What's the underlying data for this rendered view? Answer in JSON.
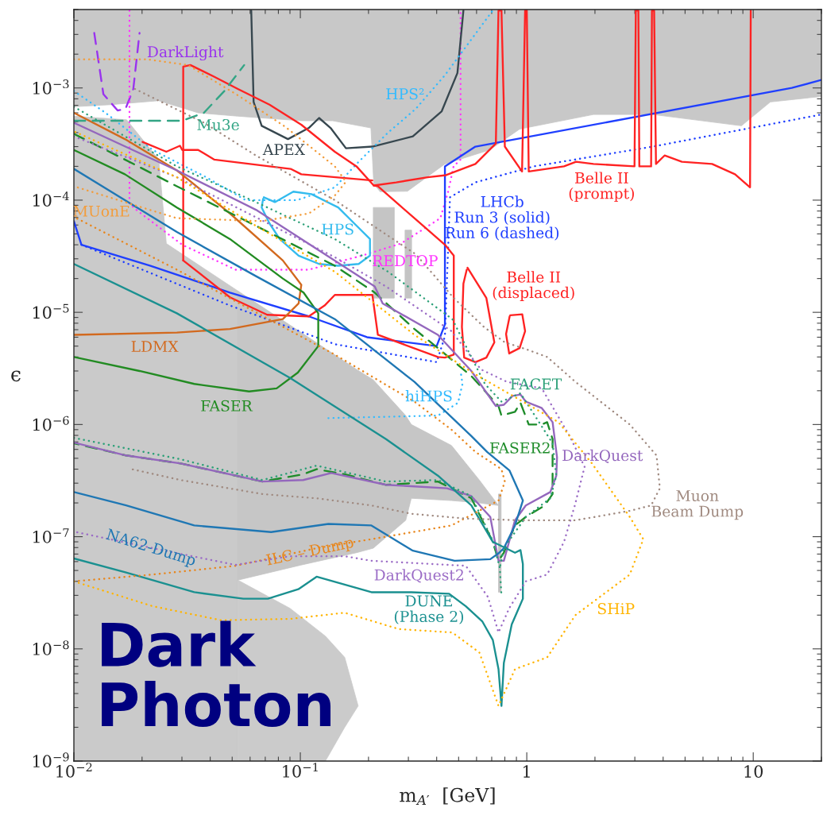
{
  "chart_data": {
    "type": "line",
    "xlabel": "m$_{A′}$  [GeV]",
    "ylabel": "ϵ",
    "log": "xy",
    "xlim": [
      0.01,
      20
    ],
    "ylim": [
      1e-09,
      0.005
    ],
    "xticks": [
      {
        "value": 0.01,
        "label": "10$^{−2}$"
      },
      {
        "value": 0.1,
        "label": "10$^{−1}$"
      },
      1,
      10
    ],
    "yticks": [
      {
        "value": 1e-09,
        "label": "10$^{−9}$"
      },
      {
        "value": 1e-08,
        "label": "10$^{−8}$"
      },
      {
        "value": 1e-07,
        "label": "10$^{−7}$"
      },
      {
        "value": 1e-06,
        "label": "10$^{−6}$"
      },
      {
        "value": 1e-05,
        "label": "10$^{−5}$"
      },
      {
        "value": 0.0001,
        "label": "10$^{−4}$"
      },
      {
        "value": 0.001,
        "label": "10$^{−3}$"
      }
    ],
    "series": [
      {
        "type": "line",
        "color": "#c8c8c8",
        "x": [
          0.01,
          0.0146,
          0.0237,
          0.0354,
          0.053,
          0.101,
          0.139,
          0.205,
          0.211,
          0.225,
          0.297,
          0.435,
          0.685,
          0.93,
          1.97,
          3.6,
          8.87,
          11.9,
          20
        ],
        "lower": [
          0.00068,
          0.00071,
          0.00077,
          0.0006,
          0.00056,
          0.00051,
          0.00051,
          0.00044,
          0.00014,
          0.000119,
          0.00012,
          0.00021,
          0.00028,
          0.00043,
          0.00058,
          0.00058,
          0.00046,
          0.00075,
          0.00084
        ],
        "values": [
          null,
          null,
          null,
          null,
          null,
          null,
          null,
          null,
          null,
          null,
          null,
          null,
          null,
          null,
          null,
          null,
          null,
          null,
          null
        ],
        "upper": [
          0.005,
          0.005,
          0.005,
          0.005,
          0.005,
          0.005,
          0.005,
          0.005,
          0.005,
          0.005,
          0.005,
          0.005,
          0.005,
          0.005,
          0.005,
          0.005,
          0.005,
          0.005,
          0.005
        ]
      },
      {
        "type": "line",
        "color": "#cacaca",
        "x": [
          0.01,
          0.0171,
          0.0237,
          0.0256,
          0.053
        ],
        "lower": [
          1e-09,
          1e-09,
          1e-09,
          1e-09,
          1e-09
        ],
        "values": [
          null,
          null,
          null,
          null,
          null
        ],
        "upper": [
          0.00056,
          0.00052,
          0.00023,
          4.1e-05,
          1.55e-05
        ]
      },
      {
        "type": "line",
        "color": "#c6c6c6",
        "x": [
          0.053,
          0.101,
          0.177,
          0.21,
          0.292,
          0.309,
          0.465,
          0.617,
          0.75
        ],
        "lower": [
          4.1e-08,
          5.6e-08,
          7.2e-08,
          7.9e-08,
          1.4e-07,
          2.2e-07,
          2.1e-07,
          2e-07,
          1.9e-07
        ],
        "values": [
          null,
          null,
          null,
          null,
          null,
          null,
          null,
          null,
          null
        ],
        "upper": [
          1.55e-05,
          6.6e-06,
          3.1e-06,
          2.5e-06,
          1.2e-06,
          1e-06,
          6.5e-07,
          3.2e-07,
          1.9e-07
        ]
      },
      {
        "type": "line",
        "color": "#cbcbcb",
        "x": [
          0.053,
          0.09,
          0.129,
          0.157,
          0.18
        ],
        "lower": [
          1e-09,
          1e-09,
          1e-09,
          2e-09,
          3.1e-09
        ],
        "values": [
          null,
          null,
          null,
          null,
          null
        ],
        "upper": [
          4.1e-08,
          2.3e-08,
          1.3e-08,
          8.4e-09,
          3.1e-09
        ]
      },
      {
        "type": "line",
        "color": "#c5c5c5",
        "x": [
          0.21,
          0.26
        ],
        "lower": [
          1.34e-05,
          1.34e-05
        ],
        "values": [
          null,
          null
        ],
        "upper": [
          8.6e-05,
          8.6e-05
        ]
      },
      {
        "type": "line",
        "color": "#c4c4c4",
        "x": [
          0.29,
          0.31
        ],
        "lower": [
          1.34e-05,
          1.34e-05
        ],
        "values": [
          null,
          null
        ],
        "upper": [
          5.4e-05,
          5.4e-05
        ]
      },
      {
        "type": "line",
        "color": "#c3c3c3",
        "x": [
          0.75,
          0.77
        ],
        "lower": [
          3.2e-08,
          3.2e-08
        ],
        "values": [
          null,
          null
        ],
        "upper": [
          2.4e-07,
          2.4e-07
        ]
      },
      {
        "name": "DarkLight",
        "color": "#9933ee",
        "line_style": "dashed",
        "x": [
          0.0123,
          0.0135,
          0.0156,
          0.0169,
          0.0183,
          0.0195
        ],
        "values": [
          0.0031,
          0.00088,
          0.00063,
          0.00065,
          0.00098,
          0.0031
        ]
      },
      {
        "name": "REDTOP",
        "color": "#ff33ff",
        "line_style": "dotted",
        "x": [
          0.0176,
          0.0176,
          0.019,
          0.0301,
          0.0517,
          0.109,
          0.187,
          0.278,
          0.415,
          0.45,
          0.475,
          0.51,
          0.51
        ],
        "values": [
          0.0049,
          9.3e-05,
          8.1e-05,
          4e-05,
          2.4e-05,
          2.4e-05,
          3.2e-05,
          4.1e-05,
          6.9e-05,
          0.00012,
          0.0002,
          0.00023,
          0.0049
        ]
      },
      {
        "name": "APEX",
        "color": "#37474f",
        "line_style": "solid",
        "x": [
          0.0607,
          0.0622,
          0.0675,
          0.0882,
          0.109,
          0.121,
          0.136,
          0.159,
          0.208,
          0.314,
          0.421,
          0.494,
          0.525
        ],
        "values": [
          0.0049,
          0.00075,
          0.00046,
          0.00035,
          0.00044,
          0.00054,
          0.00044,
          0.00029,
          0.0003,
          0.00037,
          0.00062,
          0.00136,
          0.0049
        ]
      },
      {
        "name": "HPS²",
        "color": "#33bbff",
        "line_style": "dotted",
        "x": [
          0.01,
          0.0138,
          0.0223,
          0.0384,
          0.0574,
          0.0967,
          0.142,
          0.177,
          0.244,
          0.323,
          0.435,
          0.707
        ],
        "values": [
          0.00094,
          0.0006,
          0.00028,
          0.00016,
          0.0001,
          0.0001,
          0.00013,
          0.00021,
          0.0004,
          0.00065,
          0.0013,
          0.0049
        ]
      },
      {
        "type": "line",
        "name": "HPS",
        "color": "#33bbee",
        "line_style": "solid",
        "x": [
          0.069,
          0.0772,
          0.0931,
          0.112,
          0.147,
          0.173,
          0.203,
          0.203,
          0.181,
          0.147,
          0.121,
          0.0983,
          0.0811,
          0.0731,
          0.0675,
          0.0685
        ],
        "values": [
          0.000106,
          9.6e-05,
          0.000119,
          0.000113,
          8.6e-05,
          6.2e-05,
          4.5e-05,
          3.2e-05,
          2.7e-05,
          2.6e-05,
          2.7e-05,
          3.2e-05,
          4.5e-05,
          6.2e-05,
          8.6e-05,
          0.000103
        ]
      },
      {
        "name": "hiHPS",
        "color": "#33bbff",
        "line_style": "dotted",
        "x": [
          0.133,
          0.405,
          0.497,
          0.52,
          0.51
        ],
        "values": [
          1.14e-06,
          1.2e-06,
          1.56e-06,
          2.3e-06,
          3e-06
        ]
      },
      {
        "name": "LHCb\nRun 3 (solid)\nRun 6 (dashed)",
        "color": "#1f3fff",
        "line_style": "solid",
        "x": [
          0.01,
          0.0108,
          0.0218,
          0.0489,
          0.109,
          0.197,
          0.4,
          0.435,
          0.435,
          0.593,
          14.8,
          20
        ],
        "values": [
          6.5e-05,
          4e-05,
          2.6e-05,
          1.5e-05,
          9.2e-06,
          6e-06,
          5e-06,
          7.8e-06,
          0.0002,
          0.0003,
          0.001,
          0.00118
        ]
      },
      {
        "color": "#1f3fff",
        "line_style": "dotted",
        "x": [
          0.0108,
          0.0489,
          0.142,
          0.4,
          0.435,
          0.458,
          0.593,
          1.075,
          3.6,
          20
        ],
        "values": [
          4e-05,
          1.15e-05,
          5.2e-06,
          3.6e-06,
          6.1e-06,
          0.000106,
          0.000144,
          0.0002,
          0.0003,
          0.00058
        ]
      },
      {
        "name": "Belle II\n(prompt)",
        "color": "#ff2222",
        "line_style": "solid",
        "x": [
          0.0304,
          0.0304,
          0.0327,
          0.0416,
          0.053,
          0.0731,
          0.101,
          0.142,
          0.177,
          0.211,
          0.265,
          0.365,
          0.44,
          0.593,
          0.73,
          0.75,
          0.773,
          0.8,
          0.953,
          0.983,
          1.0,
          1.02,
          1.46,
          1.65,
          1.97,
          2.99,
          3.03,
          3.11,
          3.14,
          3.54,
          3.57,
          3.65,
          3.72,
          4.06,
          4.84,
          6.58,
          8.31,
          9.68,
          9.75
        ],
        "values": [
          2.9e-05,
          0.00155,
          0.0016,
          0.00126,
          0.00098,
          0.00071,
          0.00047,
          0.00027,
          0.0002,
          0.000135,
          0.000144,
          0.00016,
          0.000167,
          0.00021,
          0.00032,
          0.0049,
          0.0049,
          0.0003,
          0.00018,
          0.0049,
          0.0049,
          0.00018,
          0.0002,
          0.00022,
          0.00021,
          0.0002,
          0.0049,
          0.0049,
          0.0002,
          0.0002,
          0.0049,
          0.0049,
          0.00021,
          0.00025,
          0.00022,
          0.00021,
          0.00017,
          0.00013,
          0.0049
        ]
      },
      {
        "color": "#ff2222",
        "line_style": "solid",
        "x": [
          0.0304,
          0.0489,
          0.0714,
          0.109,
          0.128,
          0.142,
          0.208,
          0.22,
          0.405,
          0.435,
          0.476,
          0.476,
          0.435,
          0.319,
          0.22,
          0.211
        ],
        "values": [
          2.9e-05,
          1.36e-05,
          9.5e-06,
          9.2e-06,
          1.15e-05,
          1.43e-05,
          1.43e-05,
          6.3e-06,
          4e-06,
          3.95e-06,
          4.2e-06,
          3.2e-05,
          4e-05,
          6.9e-05,
          0.000133,
          0.000135
        ]
      },
      {
        "color": "#ff2222",
        "line_style": "solid",
        "x": [
          0.0201,
          0.0256,
          0.0294,
          0.0301,
          0.0354,
          0.0416,
          0.0906,
          0.101,
          0.208
        ],
        "values": [
          0.00033,
          0.00027,
          0.000305,
          0.00028,
          0.00028,
          0.00023,
          0.00019,
          0.00017,
          0.00015
        ]
      },
      {
        "type": "line",
        "name": "Belle II\n(displaced)",
        "color": "#ff2222",
        "line_style": "solid",
        "x": [
          0.547,
          0.663,
          0.719,
          0.663,
          0.593,
          0.529,
          0.517,
          0.525,
          0.543
        ],
        "values": [
          2.5e-05,
          1.34e-05,
          5.4e-06,
          3.95e-06,
          3.6e-06,
          3.95e-06,
          7.4e-06,
          1.8e-05,
          2.4e-05
        ]
      },
      {
        "type": "line",
        "color": "#ff2222",
        "line_style": "solid",
        "x": [
          0.845,
          0.955,
          0.983,
          0.93,
          0.836,
          0.81,
          0.84
        ],
        "values": [
          9.4e-06,
          9.6e-06,
          6.8e-06,
          4.8e-06,
          4.3e-06,
          6.4e-06,
          9.2e-06
        ]
      },
      {
        "name": "LDMX",
        "color": "#d2691e",
        "line_style": "solid",
        "x": [
          0.01,
          0.0168,
          0.0285,
          0.0489,
          0.0837,
          0.101,
          0.0983,
          0.0837,
          0.0489,
          0.0285,
          0.01
        ],
        "values": [
          0.0006,
          0.00035,
          0.000184,
          7.6e-05,
          2.9e-05,
          1.76e-05,
          1.2e-05,
          8.7e-06,
          7.1e-06,
          6.6e-06,
          6.3e-06
        ]
      },
      {
        "name": "FASER",
        "color": "#228b22",
        "line_style": "solid",
        "x": [
          0.01,
          0.0168,
          0.0285,
          0.0489,
          0.0837,
          0.1033,
          0.12,
          0.12,
          0.0975,
          0.0786,
          0.0594,
          0.034,
          0.0195,
          0.01
        ],
        "values": [
          0.00028,
          0.00017,
          8.6e-05,
          4.5e-05,
          2e-05,
          1.5e-05,
          9.8e-06,
          5e-06,
          2.9e-06,
          2.1e-06,
          1.97e-06,
          2.3e-06,
          3e-06,
          4e-06
        ]
      },
      {
        "name": "FASER2",
        "color": "#1e8c2a",
        "line_style": "dashed",
        "x": [
          0.01,
          0.0168,
          0.0285,
          0.0637,
          0.142,
          0.213,
          0.319,
          0.405,
          0.569,
          0.75,
          0.773,
          0.887,
          0.938,
          1.02,
          1.165,
          1.23,
          1.3,
          1.3,
          1.2,
          0.99,
          0.887,
          0.792,
          0.75,
          0.708,
          0.653,
          0.569,
          0.405,
          0.239,
          0.157,
          0.118,
          0.103,
          0.068,
          0.0296,
          0.017,
          0.01
        ],
        "values": [
          0.00039,
          0.00023,
          0.000133,
          5.9e-05,
          2.6e-05,
          1.5e-05,
          7.1e-06,
          4.8e-06,
          2.7e-06,
          1.46e-06,
          1.2e-06,
          1.3e-06,
          1.56e-06,
          1e-06,
          1e-06,
          1.05e-06,
          7.4e-07,
          2.4e-07,
          1.9e-07,
          1.5e-07,
          1.26e-07,
          7.2e-08,
          6.1e-08,
          9e-08,
          1.26e-07,
          2.2e-07,
          3.1e-07,
          2.9e-07,
          3.6e-07,
          4e-07,
          3.6e-07,
          3.1e-07,
          4.5e-07,
          5.3e-07,
          6.8e-07
        ]
      },
      {
        "name": "DarkQuest",
        "color": "#9467bd",
        "line_style": "solid",
        "x": [
          0.01,
          0.0285,
          0.0637,
          0.213,
          0.231,
          0.405,
          0.569,
          0.73,
          0.792,
          0.865,
          0.938,
          0.99,
          1.165,
          1.3,
          1.36,
          1.35,
          1.27,
          0.99,
          0.887,
          0.792,
          0.75,
          0.69,
          0.569,
          0.444,
          0.239,
          0.137,
          0.103,
          0.068,
          0.0296,
          0.017,
          0.01
        ],
        "values": [
          0.00049,
          0.000184,
          8.2e-05,
          1.7e-05,
          1.2e-05,
          6.3e-06,
          3e-06,
          1.46e-06,
          1.5e-06,
          1.8e-06,
          1.85e-06,
          1.6e-06,
          1.4e-06,
          1.05e-06,
          5.1e-07,
          3.5e-07,
          2.5e-07,
          1.9e-07,
          1.4e-07,
          6.1e-08,
          6.1e-08,
          1.5e-07,
          2.3e-07,
          2.7e-07,
          2.9e-07,
          3.7e-07,
          3.2e-07,
          3.1e-07,
          4.5e-07,
          5.3e-07,
          6.9e-07
        ]
      },
      {
        "name": "FACET",
        "color": "#2ca078",
        "line_style": "dotted",
        "x": [
          0.01,
          0.0285,
          0.0637,
          0.142,
          0.244,
          0.469,
          0.653,
          0.773,
          0.938,
          1.3,
          1.35,
          1.27,
          0.99,
          0.792,
          0.76
        ],
        "values": [
          0.00068,
          0.0002,
          9.6e-05,
          4.5e-05,
          2.3e-05,
          8.7e-06,
          2.3e-06,
          1.6e-06,
          1.9e-06,
          6.8e-07,
          3.5e-07,
          2.2e-07,
          1.5e-07,
          7.9e-08,
          5.3e-08
        ]
      },
      {
        "color": "#2ca078",
        "line_style": "dotted",
        "x": [
          0.01,
          0.0296,
          0.068,
          0.118,
          0.239,
          0.405,
          0.569,
          0.708,
          0.76,
          0.773
        ],
        "values": [
          7.6e-07,
          4.9e-07,
          3.2e-07,
          4.3e-07,
          3.1e-07,
          3.2e-07,
          2.3e-07,
          9.2e-08,
          5.3e-08,
          3e-08
        ]
      },
      {
        "name": "NA62-Dump",
        "color": "#1f77b4",
        "line_style": "solid",
        "x": [
          0.01,
          0.0285,
          0.0637,
          0.142,
          0.319,
          0.569,
          0.668,
          0.838,
          0.961,
          0.887,
          0.792,
          0.75,
          0.69,
          0.48,
          0.314,
          0.206,
          0.133,
          0.0743,
          0.034,
          0.017,
          0.01
        ],
        "values": [
          0.00019,
          5.2e-05,
          2.1e-05,
          8.7e-06,
          2.4e-06,
          7.9e-07,
          5.7e-07,
          3.9e-07,
          2.1e-07,
          1.26e-07,
          7.9e-08,
          7.1e-08,
          6.3e-08,
          6.1e-08,
          7.5e-08,
          1.26e-07,
          1.3e-07,
          1.1e-07,
          1.26e-07,
          1.9e-07,
          2.5e-07
        ]
      },
      {
        "name": "DUNE\n(Phase 2)",
        "color": "#1a9090",
        "line_style": "solid",
        "x": [
          0.01,
          0.0285,
          0.0901,
          0.239,
          0.405,
          0.569,
          0.708,
          0.887,
          0.938,
          0.961,
          0.961,
          0.858,
          0.792,
          0.773,
          0.75,
          0.708,
          0.637,
          0.538,
          0.454,
          0.309,
          0.206,
          0.118,
          0.098,
          0.0719,
          0.056,
          0.034,
          0.017,
          0.01
        ],
        "values": [
          2.7e-05,
          9.8e-06,
          2.6e-06,
          7.4e-07,
          3.5e-07,
          1.9e-07,
          9e-08,
          7.2e-08,
          7.6e-08,
          5.7e-08,
          2.8e-08,
          1.65e-08,
          7.5e-09,
          3.1e-09,
          6.6e-09,
          1.2e-08,
          1.75e-08,
          2.4e-08,
          3.1e-08,
          3.2e-08,
          3.2e-08,
          4.4e-08,
          3.4e-08,
          2.8e-08,
          2.8e-08,
          3.2e-08,
          4.8e-08,
          6.4e-08
        ]
      },
      {
        "name": "Mu3e",
        "color": "#33a585",
        "line_style": "dashed",
        "x": [
          0.01,
          0.0301,
          0.0375,
          0.0462,
          0.0565
        ],
        "values": [
          0.00051,
          0.00051,
          0.0006,
          0.00094,
          0.0016
        ]
      },
      {
        "name": "MUonE",
        "color": "#f39c3a",
        "line_style": "dotted",
        "x": [
          0.01,
          0.021,
          0.0319,
          0.053,
          0.0859,
          0.142,
          0.159,
          0.142,
          0.109,
          0.0675,
          0.0285,
          0.0168,
          0.01
        ],
        "values": [
          0.0018,
          0.0018,
          0.0016,
          0.00086,
          0.00045,
          0.0002,
          0.000146,
          0.00011,
          7.6e-05,
          6.5e-05,
          6.9e-05,
          9.6e-05,
          0.000133
        ]
      },
      {
        "name": "ILC – Dump",
        "color": "#e8861c",
        "line_style": "dotted",
        "x": [
          0.01,
          0.0223,
          0.0517,
          0.118,
          0.206,
          0.465,
          0.75,
          0.8,
          0.773,
          0.593,
          0.465,
          0.319,
          0.142,
          0.0637,
          0.0285,
          0.01
        ],
        "values": [
          4e-08,
          4.6e-08,
          5.5e-08,
          7.9e-08,
          9.5e-08,
          1.26e-07,
          2.1e-07,
          3.1e-07,
          4e-07,
          5.7e-07,
          9e-07,
          1.6e-06,
          4.2e-06,
          1e-05,
          2.4e-05,
          7.1e-05
        ]
      },
      {
        "name": "DarkQuest2",
        "color": "#9b6cc6",
        "line_style": "dotted",
        "x": [
          0.01,
          0.0285,
          0.142,
          0.239,
          0.465,
          0.627,
          0.818,
          1.165,
          1.545,
          1.8,
          1.63,
          1.46,
          1.23,
          0.99,
          0.836,
          0.75,
          0.674,
          0.538,
          0.206,
          0.157,
          0.09,
          0.0517,
          0.0223,
          0.01
        ],
        "values": [
          0.00037,
          0.00016,
          3.1e-05,
          1.7e-05,
          6.8e-06,
          3.1e-06,
          2.4e-06,
          2.1e-06,
          7.9e-07,
          4.2e-07,
          1.9e-07,
          9e-08,
          4.6e-08,
          4e-08,
          2.3e-08,
          1.4e-08,
          2.9e-08,
          5.5e-08,
          6.1e-08,
          6.7e-08,
          6.7e-08,
          5.6e-08,
          7.9e-08,
          1.11e-07
        ]
      },
      {
        "name": "SHiP",
        "color": "#ffb400",
        "line_style": "dotted",
        "x": [
          0.01,
          0.0223,
          0.0447,
          0.09,
          0.157,
          0.273,
          0.469,
          0.617,
          0.75,
          0.887,
          1.23,
          1.64,
          2.85,
          3.27,
          2.85,
          1.94,
          1.38,
          0.961,
          0.593,
          0.319,
          0.142,
          0.0637,
          0.0285,
          0.01
        ],
        "values": [
          4e-08,
          2.4e-08,
          1.8e-08,
          1.85e-08,
          2.1e-08,
          1.5e-08,
          1.4e-08,
          9.3e-09,
          3.1e-09,
          6.6e-09,
          8.4e-09,
          2e-08,
          4.6e-08,
          9.5e-08,
          1.5e-07,
          4.5e-07,
          1.05e-06,
          1.6e-06,
          2.8e-06,
          6.3e-06,
          2.3e-05,
          5.9e-05,
          0.00016,
          0.00041
        ]
      },
      {
        "name": "Muon\nBeam Dump",
        "color": "#a08a80",
        "line_style": "dotted",
        "x": [
          0.0186,
          0.0375,
          0.0637,
          0.142,
          0.323,
          0.476,
          0.647,
          0.8,
          0.99,
          1.23,
          1.64,
          2.85,
          3.74,
          3.87,
          3.54,
          2.85,
          1.64,
          0.938,
          0.538,
          0.309,
          0.206,
          0.118,
          0.068,
          0.0296,
          0.018
        ],
        "values": [
          0.00098,
          0.00049,
          0.00025,
          0.0001,
          3.3e-05,
          1.34e-05,
          7.4e-06,
          5.4e-06,
          4.7e-06,
          4e-06,
          2.4e-06,
          1e-06,
          5.3e-07,
          2.7e-07,
          1.9e-07,
          1.7e-07,
          1.4e-07,
          1.4e-07,
          1.45e-07,
          1.6e-07,
          1.9e-07,
          2.2e-07,
          2.4e-07,
          3.2e-07,
          4e-07
        ]
      }
    ],
    "annotations": [
      "Dark\nPhoton"
    ]
  }
}
